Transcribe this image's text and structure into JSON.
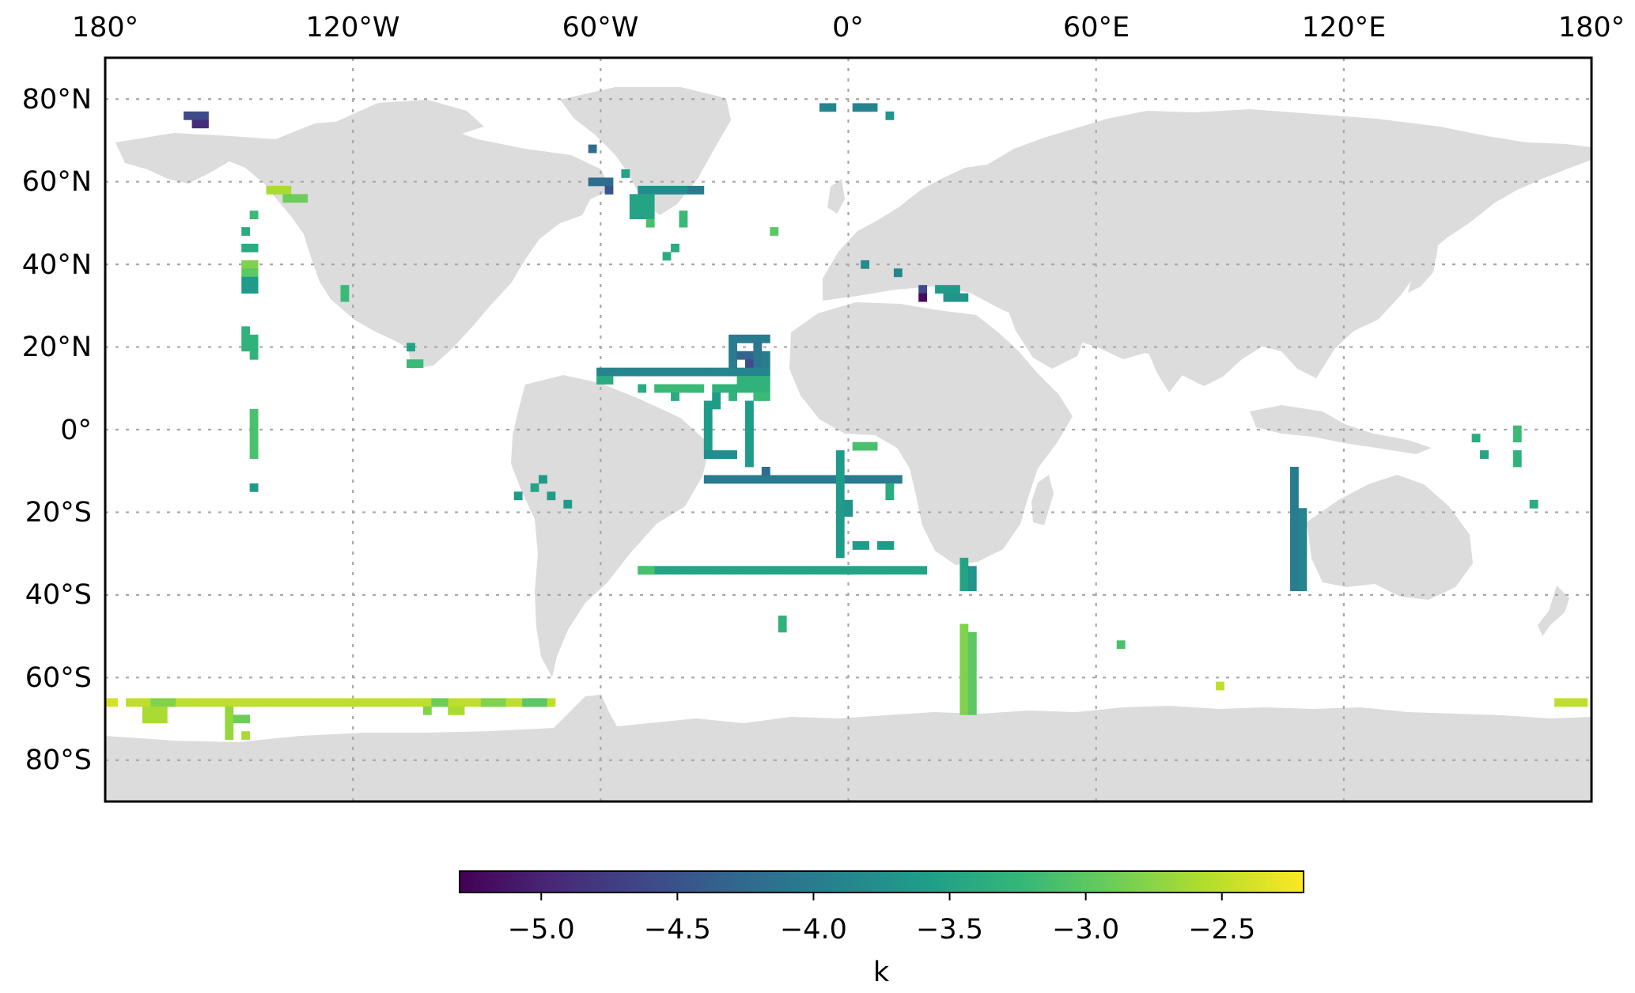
{
  "map": {
    "x_tick_labels": [
      "180°",
      "120°W",
      "60°W",
      "0°",
      "60°E",
      "120°E",
      "180°"
    ],
    "y_tick_labels": [
      "80°N",
      "60°N",
      "40°N",
      "20°N",
      "0°",
      "20°S",
      "40°S",
      "60°S",
      "80°S"
    ],
    "land_color": "#dcdcdc",
    "ocean_color": "#ffffff",
    "grid": true,
    "grid_style": "dotted gray",
    "projection": "plate carree"
  },
  "colorbar": {
    "label": "k",
    "tick_labels": [
      "−5.0",
      "−4.5",
      "−4.0",
      "−3.5",
      "−3.0",
      "−2.5"
    ],
    "tick_values": [
      -5.0,
      -4.5,
      -4.0,
      -3.5,
      -3.0,
      -2.5
    ],
    "range": [
      -5.3,
      -2.2
    ],
    "colormap": "viridis",
    "stops": [
      "#440154",
      "#482878",
      "#3e4989",
      "#31688e",
      "#26828e",
      "#1f9e89",
      "#35b779",
      "#6ece58",
      "#b5de2b",
      "#fde725"
    ]
  },
  "chart_data": {
    "type": "heatmap",
    "title": "",
    "xlabel": "",
    "ylabel": "",
    "value_label": "k",
    "xlim": [
      -180,
      180
    ],
    "ylim": [
      -90,
      90
    ],
    "cell_size_deg": 2,
    "runs": [
      {
        "lon0": -160,
        "lon1": -156,
        "lat0": 76,
        "lat1": 76,
        "k": -4.6
      },
      {
        "lon0": -158,
        "lon1": -156,
        "lat0": 74,
        "lat1": 74,
        "k": -4.9
      },
      {
        "lon0": -140,
        "lon1": -136,
        "lat0": 58,
        "lat1": 58,
        "k": -2.6
      },
      {
        "lon0": -136,
        "lon1": -132,
        "lat0": 56,
        "lat1": 56,
        "k": -2.9
      },
      {
        "lon0": -144,
        "lon1": -144,
        "lat0": 52,
        "lat1": 52,
        "k": -3.2
      },
      {
        "lon0": -146,
        "lon1": -146,
        "lat0": 48,
        "lat1": 48,
        "k": -3.4
      },
      {
        "lon0": -146,
        "lon1": -144,
        "lat0": 44,
        "lat1": 44,
        "k": -3.4
      },
      {
        "lon0": -146,
        "lon1": -144,
        "lat0": 40,
        "lat1": 40,
        "k": -2.8
      },
      {
        "lon0": -146,
        "lon1": -144,
        "lat0": 38,
        "lat1": 38,
        "k": -3.0
      },
      {
        "lon0": -146,
        "lon1": -144,
        "lat0": 36,
        "lat1": 34,
        "k": -3.6
      },
      {
        "lon0": -122,
        "lon1": -122,
        "lat0": 34,
        "lat1": 32,
        "k": -3.2
      },
      {
        "lon0": -146,
        "lon1": -146,
        "lat0": 24,
        "lat1": 20,
        "k": -3.3
      },
      {
        "lon0": -144,
        "lon1": -144,
        "lat0": 22,
        "lat1": 18,
        "k": -3.3
      },
      {
        "lon0": -144,
        "lon1": -144,
        "lat0": 4,
        "lat1": -6,
        "k": -3.1
      },
      {
        "lon0": -144,
        "lon1": -144,
        "lat0": -14,
        "lat1": -14,
        "k": -3.6
      },
      {
        "lon0": -106,
        "lon1": -106,
        "lat0": 20,
        "lat1": 20,
        "k": -3.5
      },
      {
        "lon0": -106,
        "lon1": -104,
        "lat0": 16,
        "lat1": 16,
        "k": -3.2
      },
      {
        "lon0": -62,
        "lon1": -62,
        "lat0": 68,
        "lat1": 68,
        "k": -4.2
      },
      {
        "lon0": -62,
        "lon1": -58,
        "lat0": 60,
        "lat1": 60,
        "k": -4.2
      },
      {
        "lon0": -58,
        "lon1": -58,
        "lat0": 58,
        "lat1": 58,
        "k": -4.5
      },
      {
        "lon0": -54,
        "lon1": -54,
        "lat0": 62,
        "lat1": 62,
        "k": -3.5
      },
      {
        "lon0": -50,
        "lon1": -40,
        "lat0": 58,
        "lat1": 58,
        "k": -3.8
      },
      {
        "lon0": -38,
        "lon1": -36,
        "lat0": 58,
        "lat1": 58,
        "k": -4.0
      },
      {
        "lon0": -52,
        "lon1": -48,
        "lat0": 56,
        "lat1": 52,
        "k": -3.5
      },
      {
        "lon0": -48,
        "lon1": -48,
        "lat0": 50,
        "lat1": 50,
        "k": -3.1
      },
      {
        "lon0": -40,
        "lon1": -40,
        "lat0": 52,
        "lat1": 50,
        "k": -3.2
      },
      {
        "lon0": -18,
        "lon1": -18,
        "lat0": 48,
        "lat1": 48,
        "k": -3.0
      },
      {
        "lon0": -42,
        "lon1": -42,
        "lat0": 44,
        "lat1": 44,
        "k": -3.4
      },
      {
        "lon0": -44,
        "lon1": -44,
        "lat0": 42,
        "lat1": 42,
        "k": -3.4
      },
      {
        "lon0": -6,
        "lon1": -4,
        "lat0": 78,
        "lat1": 78,
        "k": -3.9
      },
      {
        "lon0": 2,
        "lon1": 6,
        "lat0": 78,
        "lat1": 78,
        "k": -3.9
      },
      {
        "lon0": 10,
        "lon1": 10,
        "lat0": 76,
        "lat1": 76,
        "k": -3.7
      },
      {
        "lon0": 4,
        "lon1": 4,
        "lat0": 40,
        "lat1": 40,
        "k": -3.8
      },
      {
        "lon0": 12,
        "lon1": 12,
        "lat0": 38,
        "lat1": 38,
        "k": -3.9
      },
      {
        "lon0": 18,
        "lon1": 18,
        "lat0": 34,
        "lat1": 34,
        "k": -4.6
      },
      {
        "lon0": 18,
        "lon1": 18,
        "lat0": 32,
        "lat1": 32,
        "k": -5.2
      },
      {
        "lon0": 22,
        "lon1": 26,
        "lat0": 34,
        "lat1": 34,
        "k": -3.6
      },
      {
        "lon0": 24,
        "lon1": 28,
        "lat0": 32,
        "lat1": 32,
        "k": -3.7
      },
      {
        "lon0": -28,
        "lon1": -20,
        "lat0": 22,
        "lat1": 22,
        "k": -4.0
      },
      {
        "lon0": -28,
        "lon1": -28,
        "lat0": 20,
        "lat1": 16,
        "k": -4.0
      },
      {
        "lon0": -26,
        "lon1": -24,
        "lat0": 18,
        "lat1": 18,
        "k": -4.3
      },
      {
        "lon0": -24,
        "lon1": -24,
        "lat0": 16,
        "lat1": 16,
        "k": -4.6
      },
      {
        "lon0": -22,
        "lon1": -22,
        "lat0": 20,
        "lat1": 16,
        "k": -4.1
      },
      {
        "lon0": -20,
        "lon1": -20,
        "lat0": 18,
        "lat1": 16,
        "k": -4.0
      },
      {
        "lon0": -60,
        "lon1": -20,
        "lat0": 14,
        "lat1": 14,
        "k": -3.9
      },
      {
        "lon0": -60,
        "lon1": -58,
        "lat0": 12,
        "lat1": 12,
        "k": -3.4
      },
      {
        "lon0": -26,
        "lon1": -20,
        "lat0": 12,
        "lat1": 12,
        "k": -3.3
      },
      {
        "lon0": -50,
        "lon1": -50,
        "lat0": 10,
        "lat1": 10,
        "k": -3.4
      },
      {
        "lon0": -46,
        "lon1": -36,
        "lat0": 10,
        "lat1": 10,
        "k": -3.2
      },
      {
        "lon0": -32,
        "lon1": -20,
        "lat0": 10,
        "lat1": 10,
        "k": -3.3
      },
      {
        "lon0": -42,
        "lon1": -42,
        "lat0": 8,
        "lat1": 8,
        "k": -3.4
      },
      {
        "lon0": -32,
        "lon1": -32,
        "lat0": 8,
        "lat1": 6,
        "k": -3.6
      },
      {
        "lon0": -28,
        "lon1": -28,
        "lat0": 8,
        "lat1": 8,
        "k": -3.3
      },
      {
        "lon0": -22,
        "lon1": -20,
        "lat0": 8,
        "lat1": 8,
        "k": -3.2
      },
      {
        "lon0": -34,
        "lon1": -34,
        "lat0": 6,
        "lat1": -4,
        "k": -3.6
      },
      {
        "lon0": -34,
        "lon1": -28,
        "lat0": -6,
        "lat1": -6,
        "k": -3.8
      },
      {
        "lon0": -24,
        "lon1": -24,
        "lat0": 6,
        "lat1": -8,
        "k": -3.6
      },
      {
        "lon0": -34,
        "lon1": 12,
        "lat0": -12,
        "lat1": -12,
        "k": -4.0
      },
      {
        "lon0": -20,
        "lon1": -20,
        "lat0": -10,
        "lat1": -10,
        "k": -4.2
      },
      {
        "lon0": -2,
        "lon1": -2,
        "lat0": -6,
        "lat1": -30,
        "k": -3.6
      },
      {
        "lon0": 2,
        "lon1": 6,
        "lat0": -4,
        "lat1": -4,
        "k": -3.1
      },
      {
        "lon0": 0,
        "lon1": 0,
        "lat0": -18,
        "lat1": -20,
        "k": -3.7
      },
      {
        "lon0": 10,
        "lon1": 10,
        "lat0": -14,
        "lat1": -16,
        "k": -3.4
      },
      {
        "lon0": 2,
        "lon1": 4,
        "lat0": -28,
        "lat1": -28,
        "k": -3.6
      },
      {
        "lon0": 8,
        "lon1": 10,
        "lat0": -28,
        "lat1": -28,
        "k": -3.6
      },
      {
        "lon0": -80,
        "lon1": -80,
        "lat0": -16,
        "lat1": -16,
        "k": -3.6
      },
      {
        "lon0": -76,
        "lon1": -76,
        "lat0": -14,
        "lat1": -14,
        "k": -3.5
      },
      {
        "lon0": -74,
        "lon1": -74,
        "lat0": -12,
        "lat1": -12,
        "k": -3.6
      },
      {
        "lon0": -72,
        "lon1": -72,
        "lat0": -16,
        "lat1": -16,
        "k": -3.6
      },
      {
        "lon0": -68,
        "lon1": -68,
        "lat0": -18,
        "lat1": -18,
        "k": -3.6
      },
      {
        "lon0": -50,
        "lon1": 18,
        "lat0": -34,
        "lat1": -34,
        "k": -3.5
      },
      {
        "lon0": -50,
        "lon1": -48,
        "lat0": -34,
        "lat1": -34,
        "k": -3.1
      },
      {
        "lon0": 28,
        "lon1": 28,
        "lat0": -32,
        "lat1": -38,
        "k": -3.5
      },
      {
        "lon0": 30,
        "lon1": 30,
        "lat0": -34,
        "lat1": -38,
        "k": -3.7
      },
      {
        "lon0": -16,
        "lon1": -16,
        "lat0": -46,
        "lat1": -48,
        "k": -3.3
      },
      {
        "lon0": 66,
        "lon1": 66,
        "lat0": -52,
        "lat1": -52,
        "k": -3.1
      },
      {
        "lon0": 28,
        "lon1": 28,
        "lat0": -48,
        "lat1": -68,
        "k": -2.8
      },
      {
        "lon0": 30,
        "lon1": 30,
        "lat0": -50,
        "lat1": -68,
        "k": -3.0
      },
      {
        "lon0": 90,
        "lon1": 90,
        "lat0": -62,
        "lat1": -62,
        "k": -2.5
      },
      {
        "lon0": 108,
        "lon1": 108,
        "lat0": -10,
        "lat1": -38,
        "k": -4.0
      },
      {
        "lon0": 110,
        "lon1": 110,
        "lat0": -20,
        "lat1": -38,
        "k": -3.9
      },
      {
        "lon0": 152,
        "lon1": 152,
        "lat0": -2,
        "lat1": -2,
        "k": -3.4
      },
      {
        "lon0": 154,
        "lon1": 154,
        "lat0": -6,
        "lat1": -6,
        "k": -3.5
      },
      {
        "lon0": 162,
        "lon1": 162,
        "lat0": 0,
        "lat1": -2,
        "k": -3.2
      },
      {
        "lon0": 162,
        "lon1": 162,
        "lat0": -6,
        "lat1": -8,
        "k": -3.3
      },
      {
        "lon0": 166,
        "lon1": 166,
        "lat0": -18,
        "lat1": -18,
        "k": -3.4
      },
      {
        "lon0": 172,
        "lon1": 178,
        "lat0": -66,
        "lat1": -66,
        "k": -2.5
      },
      {
        "lon0": -180,
        "lon1": -178,
        "lat0": -66,
        "lat1": -66,
        "k": -2.4
      },
      {
        "lon0": -174,
        "lon1": -72,
        "lat0": -66,
        "lat1": -66,
        "k": -2.5
      },
      {
        "lon0": -168,
        "lon1": -164,
        "lat0": -66,
        "lat1": -66,
        "k": -2.8
      },
      {
        "lon0": -100,
        "lon1": -98,
        "lat0": -66,
        "lat1": -66,
        "k": -2.9
      },
      {
        "lon0": -88,
        "lon1": -84,
        "lat0": -66,
        "lat1": -66,
        "k": -2.8
      },
      {
        "lon0": -78,
        "lon1": -74,
        "lat0": -66,
        "lat1": -66,
        "k": -3.0
      },
      {
        "lon0": -170,
        "lon1": -166,
        "lat0": -68,
        "lat1": -70,
        "k": -2.6
      },
      {
        "lon0": -150,
        "lon1": -150,
        "lat0": -68,
        "lat1": -74,
        "k": -2.7
      },
      {
        "lon0": -148,
        "lon1": -146,
        "lat0": -70,
        "lat1": -70,
        "k": -2.9
      },
      {
        "lon0": -146,
        "lon1": -146,
        "lat0": -74,
        "lat1": -74,
        "k": -2.6
      },
      {
        "lon0": -102,
        "lon1": -102,
        "lat0": -68,
        "lat1": -68,
        "k": -2.8
      },
      {
        "lon0": -96,
        "lon1": -94,
        "lat0": -68,
        "lat1": -68,
        "k": -2.6
      }
    ]
  }
}
